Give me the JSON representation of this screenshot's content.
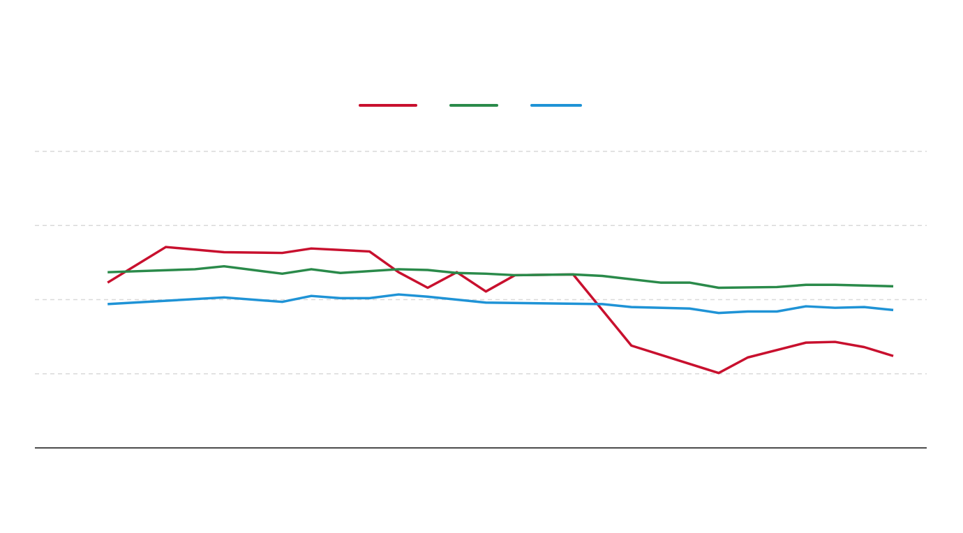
{
  "chart_data": {
    "type": "line",
    "xlim": [
      -2.5,
      28.15
    ],
    "ylim": [
      0,
      4
    ],
    "yticks": [
      1,
      2,
      3,
      4
    ],
    "grid": true,
    "legend": "top",
    "series": [
      {
        "color": "#c8102e",
        "x": [
          0,
          2,
          4,
          6,
          7,
          9,
          10,
          11,
          12,
          13,
          14,
          16,
          18,
          21,
          22,
          24,
          25,
          26,
          27
        ],
        "values": [
          2.23,
          2.71,
          2.64,
          2.63,
          2.69,
          2.65,
          2.37,
          2.16,
          2.37,
          2.11,
          2.33,
          2.34,
          1.38,
          1.01,
          1.22,
          1.42,
          1.43,
          1.36,
          1.24
        ]
      },
      {
        "color": "#2a8a4a",
        "x": [
          0,
          3,
          4,
          6,
          7,
          8,
          10,
          11,
          12,
          13,
          14,
          16,
          17,
          19,
          20,
          21,
          23,
          24,
          25,
          27
        ],
        "values": [
          2.37,
          2.41,
          2.45,
          2.35,
          2.41,
          2.36,
          2.41,
          2.4,
          2.36,
          2.35,
          2.33,
          2.34,
          2.32,
          2.23,
          2.23,
          2.16,
          2.17,
          2.2,
          2.2,
          2.18
        ]
      },
      {
        "color": "#1f93d6",
        "x": [
          0,
          4,
          6,
          7,
          8,
          9,
          10,
          11,
          13,
          17,
          18,
          20,
          21,
          22,
          23,
          24,
          25,
          26,
          27
        ],
        "values": [
          1.94,
          2.03,
          1.97,
          2.05,
          2.02,
          2.02,
          2.07,
          2.04,
          1.96,
          1.94,
          1.9,
          1.88,
          1.82,
          1.84,
          1.84,
          1.91,
          1.89,
          1.9,
          1.86
        ]
      }
    ]
  }
}
